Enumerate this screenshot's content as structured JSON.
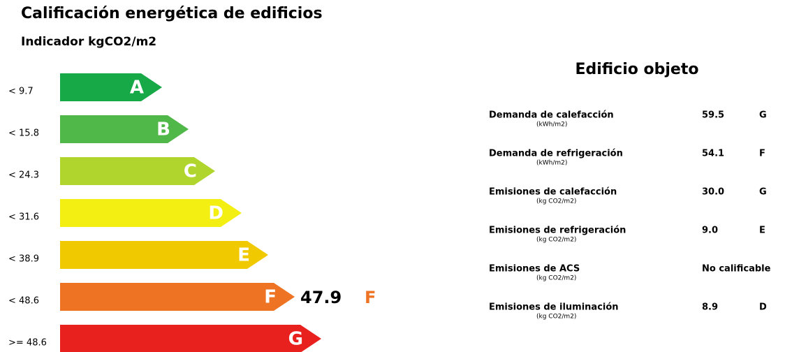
{
  "header": {
    "title": "Calificación energética de edificios",
    "subtitle": "Indicador kgCO2/m2"
  },
  "scale": [
    {
      "threshold": "< 9.7",
      "letter": "A",
      "color": "#17a848"
    },
    {
      "threshold": "< 15.8",
      "letter": "B",
      "color": "#4fb848"
    },
    {
      "threshold": "< 24.3",
      "letter": "C",
      "color": "#b0d52c"
    },
    {
      "threshold": "< 31.6",
      "letter": "D",
      "color": "#f4ef12"
    },
    {
      "threshold": "< 38.9",
      "letter": "E",
      "color": "#f0c900"
    },
    {
      "threshold": "< 48.6",
      "letter": "F",
      "color": "#ee7424"
    },
    {
      "threshold": ">= 48.6",
      "letter": "G",
      "color": "#e8201e"
    }
  ],
  "current": {
    "row": 5,
    "value": "47.9",
    "letter": "F",
    "color": "#ee7424"
  },
  "panel": {
    "title": "Edificio objeto",
    "items": [
      {
        "label": "Demanda de calefacción",
        "unit": "(kWh/m2)",
        "value": "59.5",
        "rating": "G"
      },
      {
        "label": "Demanda de refrigeración",
        "unit": "(kWh/m2)",
        "value": "54.1",
        "rating": "F"
      },
      {
        "label": "Emisiones de calefacción",
        "unit": "(kg CO2/m2)",
        "value": "30.0",
        "rating": "G"
      },
      {
        "label": "Emisiones de refrigeración",
        "unit": "(kg CO2/m2)",
        "value": "9.0",
        "rating": "E"
      },
      {
        "label": "Emisiones de ACS",
        "unit": "(kg CO2/m2)",
        "value": "No calificable"
      },
      {
        "label": "Emisiones de iluminación",
        "unit": "(kg CO2/m2)",
        "value": "8.9",
        "rating": "D"
      }
    ]
  }
}
